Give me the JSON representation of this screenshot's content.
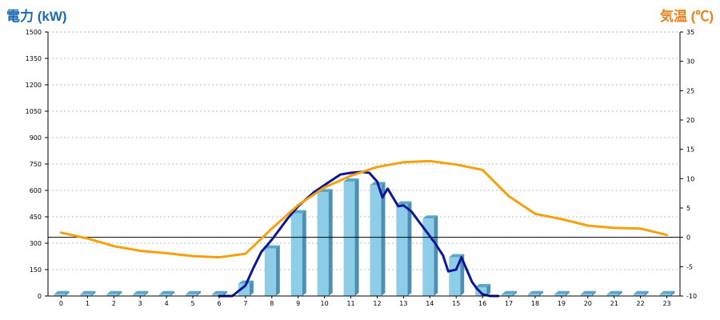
{
  "header": {
    "left_title": "電力 (kW)",
    "right_title": "気温 (℃)"
  },
  "colors": {
    "bar_front": "#8ecde8",
    "bar_side": "#4c8fb0",
    "bar_top": "#5ea6c8",
    "power_line": "#0c1696",
    "temp_line": "#f5a00c",
    "grid": "#bbbbbb",
    "zero_line": "#000000"
  },
  "chart_data": {
    "type": "bar",
    "categories": [
      "0",
      "1",
      "2",
      "3",
      "4",
      "5",
      "6",
      "7",
      "8",
      "9",
      "10",
      "11",
      "12",
      "13",
      "14",
      "15",
      "16",
      "17",
      "18",
      "19",
      "20",
      "21",
      "22",
      "23"
    ],
    "ylim_left": [
      0,
      1500
    ],
    "yticks_left": [
      "0",
      "150",
      "300",
      "450",
      "600",
      "750",
      "900",
      "1050",
      "1200",
      "1350",
      "1500"
    ],
    "ylim_right": [
      -10,
      35
    ],
    "yticks_right": [
      "-10",
      "-5",
      "0",
      "5",
      "10",
      "15",
      "20",
      "25",
      "30",
      "35"
    ],
    "grid": true,
    "series": [
      {
        "axis": "left",
        "kind": "bar",
        "values": [
          10,
          10,
          10,
          10,
          10,
          10,
          10,
          70,
          270,
          470,
          590,
          650,
          630,
          520,
          440,
          220,
          50,
          10,
          10,
          10,
          10,
          10,
          10,
          10
        ]
      },
      {
        "axis": "left",
        "kind": "line",
        "x": [
          6.0,
          6.5,
          7.0,
          7.3,
          7.6,
          8.0,
          8.3,
          8.6,
          9.0,
          9.3,
          9.6,
          10.0,
          10.3,
          10.6,
          11.0,
          11.4,
          11.7,
          12.0,
          12.2,
          12.4,
          12.6,
          12.8,
          13.0,
          13.3,
          13.6,
          13.9,
          14.2,
          14.5,
          14.7,
          15.0,
          15.2,
          15.4,
          15.6,
          15.8,
          16.0,
          16.3,
          16.6
        ],
        "values": [
          0,
          0,
          60,
          160,
          250,
          320,
          380,
          440,
          510,
          550,
          590,
          630,
          660,
          690,
          700,
          705,
          700,
          650,
          560,
          610,
          560,
          510,
          515,
          480,
          420,
          360,
          300,
          230,
          140,
          150,
          220,
          150,
          80,
          40,
          10,
          0,
          0
        ]
      },
      {
        "axis": "right",
        "kind": "line",
        "x": [
          0,
          1,
          2,
          3,
          4,
          5,
          6,
          7,
          8,
          9,
          10,
          11,
          12,
          13,
          14,
          15,
          16,
          17,
          18,
          19,
          20,
          21,
          22,
          23
        ],
        "values": [
          0.8,
          -0.2,
          -1.5,
          -2.3,
          -2.7,
          -3.2,
          -3.4,
          -2.8,
          1.5,
          5.5,
          8.5,
          10.5,
          12.0,
          12.8,
          13.0,
          12.4,
          11.5,
          7,
          4,
          3.1,
          2,
          1.6,
          1.5,
          0.4
        ]
      }
    ]
  }
}
